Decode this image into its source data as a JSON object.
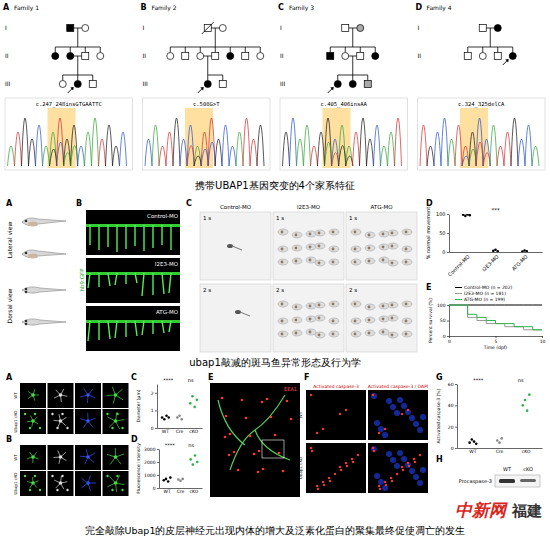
{
  "figure": {
    "row1": {
      "families": [
        {
          "label": "A",
          "name": "Family 1",
          "generations": [
            "I",
            "II",
            "III"
          ],
          "variant": "c.247_248insGTGAATTC"
        },
        {
          "label": "B",
          "name": "Family 2",
          "generations": [
            "I",
            "II",
            "III"
          ],
          "variant": "c.508G>T"
        },
        {
          "label": "C",
          "name": "Family 3",
          "generations": [
            "I",
            "II",
            "III"
          ],
          "variant": "c.405_406insAA"
        },
        {
          "label": "D",
          "name": "Family 4",
          "generations": [
            "I",
            "II"
          ],
          "variant": "c.324_325delCA"
        }
      ],
      "caption": "携带UBAP1基因突变的4个家系特征"
    },
    "row2": {
      "labels": [
        "A",
        "B",
        "C",
        "D",
        "E"
      ],
      "views": [
        "Lateral view",
        "Dorsal view"
      ],
      "reporter": "hb9:GFP",
      "groups": [
        "Control-MO",
        "I2E3-MO",
        "ATG-MO"
      ],
      "times": [
        "1 s",
        "2 s"
      ],
      "caption": "ubap1敲减的斑马鱼异常形态及行为学"
    },
    "row3": {
      "labels": [
        "A",
        "B",
        "C",
        "D",
        "E",
        "F",
        "G",
        "H"
      ],
      "rows": [
        "WT",
        "Ubap1 cKO"
      ],
      "stain": "Activated caspase-3",
      "merge": "Activated caspase-3 / DAPI",
      "marker": "EEA1",
      "blot": [
        "WT",
        "cKO",
        "Procaspase-3"
      ],
      "caption": "完全敲除Ubap1的皮层神经元出现内体的增大及泛素化蛋白的聚集最终促使凋亡的发生"
    },
    "watermark": [
      "中新网",
      "福建"
    ]
  },
  "chart_data": [
    {
      "type": "dot",
      "y_label": "% normal movement",
      "categories": [
        "Control-MO",
        "I2E3-MO",
        "ATG-MO"
      ],
      "values": [
        [
          98,
          95,
          99,
          97
        ],
        [
          3,
          6,
          2
        ],
        [
          1,
          4,
          2
        ]
      ],
      "color": "#000000",
      "ylim": [
        0,
        100
      ],
      "yticks": [
        0,
        50,
        100
      ],
      "annotations": [
        "***"
      ]
    },
    {
      "type": "line",
      "x_label": "Time (dpf)",
      "y_label": "Percent survival (%)",
      "x": [
        0,
        1,
        2,
        3,
        4,
        5,
        6,
        7,
        8,
        9,
        10
      ],
      "series": [
        {
          "name": "Control-MO (n = 202)",
          "color": "#000000",
          "values": [
            100,
            100,
            100,
            100,
            100,
            100,
            100,
            100,
            100,
            100,
            100
          ]
        },
        {
          "name": "I2E3-MO (n = 181)",
          "color": "#999999",
          "values": [
            100,
            100,
            60,
            50,
            40,
            40,
            30,
            30,
            20,
            20,
            20
          ]
        },
        {
          "name": "ATG-MO (n = 199)",
          "color": "#2db34a",
          "values": [
            100,
            100,
            70,
            60,
            50,
            40,
            40,
            30,
            30,
            20,
            20
          ]
        }
      ],
      "xlim": [
        0,
        10
      ],
      "xticks": [
        0,
        5,
        10
      ],
      "ylim": [
        0,
        100
      ],
      "yticks": [
        0,
        50,
        100
      ],
      "line_style": "step"
    },
    {
      "type": "dot",
      "y_label": "Diameter (μm)",
      "categories": [
        "WT",
        "Cre",
        "cKO"
      ],
      "values": [
        [
          0.6,
          0.5,
          0.7,
          0.6
        ],
        [
          0.6,
          0.7,
          0.5
        ],
        [
          1.4,
          1.8,
          1.2,
          1.6
        ]
      ],
      "colors": [
        "#000000",
        "#888888",
        "#2db34a"
      ],
      "ylim": [
        0,
        2.5
      ],
      "yticks": [
        0,
        1,
        2
      ],
      "annotations": [
        "****",
        "ns"
      ]
    },
    {
      "type": "dot",
      "y_label": "Fluorescence intensity",
      "categories": [
        "WT",
        "Cre",
        "cKO"
      ],
      "values": [
        [
          600,
          700,
          500,
          800
        ],
        [
          650,
          550,
          700
        ],
        [
          2200,
          1800,
          2500,
          2000
        ]
      ],
      "colors": [
        "#000000",
        "#888888",
        "#2db34a"
      ],
      "ylim": [
        0,
        3000
      ],
      "yticks": [
        0,
        1000,
        2000,
        3000
      ],
      "annotations": [
        "****",
        "ns"
      ]
    },
    {
      "type": "dot",
      "y_label": "Activated caspase-3 (%)",
      "categories": [
        "WT",
        "Cre",
        "cKO"
      ],
      "values": [
        [
          5,
          8,
          6,
          4
        ],
        [
          7,
          5,
          9
        ],
        [
          40,
          45,
          35,
          50
        ]
      ],
      "colors": [
        "#000000",
        "#888888",
        "#2db34a"
      ],
      "ylim": [
        0,
        60
      ],
      "yticks": [
        0,
        20,
        40,
        60
      ],
      "annotations": [
        "****",
        "ns"
      ]
    }
  ]
}
